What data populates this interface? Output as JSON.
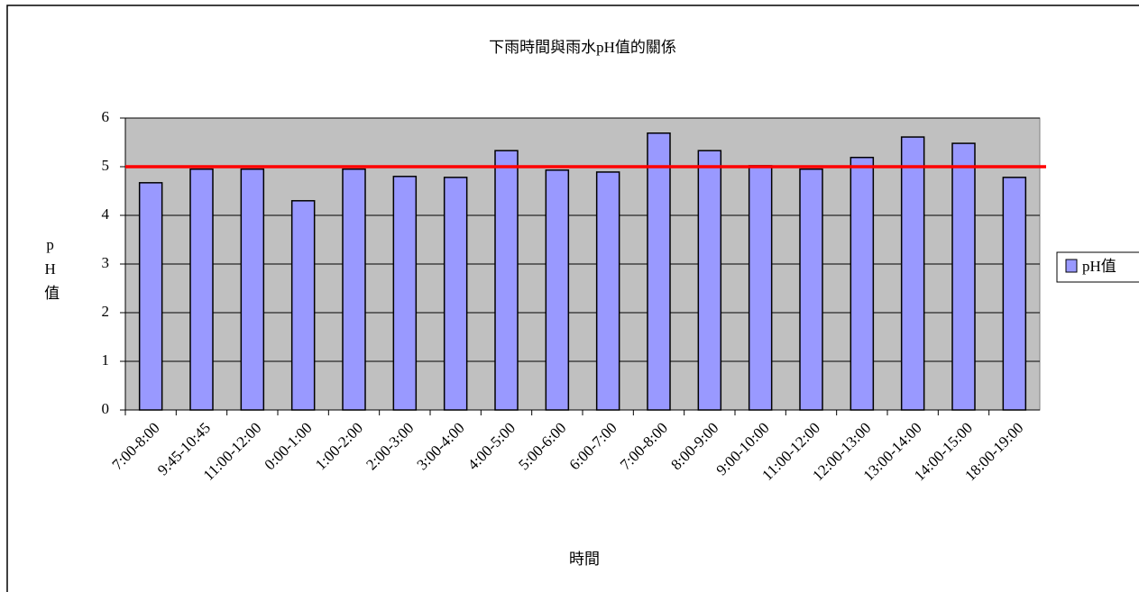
{
  "chart_data": {
    "type": "bar",
    "title": "下雨時間與雨水pH值的關係",
    "x_label": "時間",
    "y_label": "pH值",
    "categories": [
      "7:00-8:00",
      "9:45-10:45",
      "11:00-12:00",
      "0:00-1:00",
      "1:00-2:00",
      "2:00-3:00",
      "3:00-4:00",
      "4:00-5:00",
      "5:00-6:00",
      "6:00-7:00",
      "7:00-8:00",
      "8:00-9:00",
      "9:00-10:00",
      "11:00-12:00",
      "12:00-13:00",
      "13:00-14:00",
      "14:00-15:00",
      "18:00-19:00"
    ],
    "series": [
      {
        "name": "pH值",
        "color": "#9999ff",
        "values": [
          4.67,
          4.95,
          4.95,
          4.3,
          4.95,
          4.8,
          4.78,
          5.33,
          4.93,
          4.89,
          5.69,
          5.33,
          5.02,
          4.95,
          5.19,
          5.61,
          5.48,
          4.78
        ]
      }
    ],
    "reference_line": {
      "value": 5,
      "color": "#ff0000"
    },
    "ylim": [
      0,
      6
    ],
    "yticks": [
      0,
      1,
      2,
      3,
      4,
      5,
      6
    ],
    "grid": true,
    "plot_background": "#c0c0c0",
    "legend": "right"
  }
}
